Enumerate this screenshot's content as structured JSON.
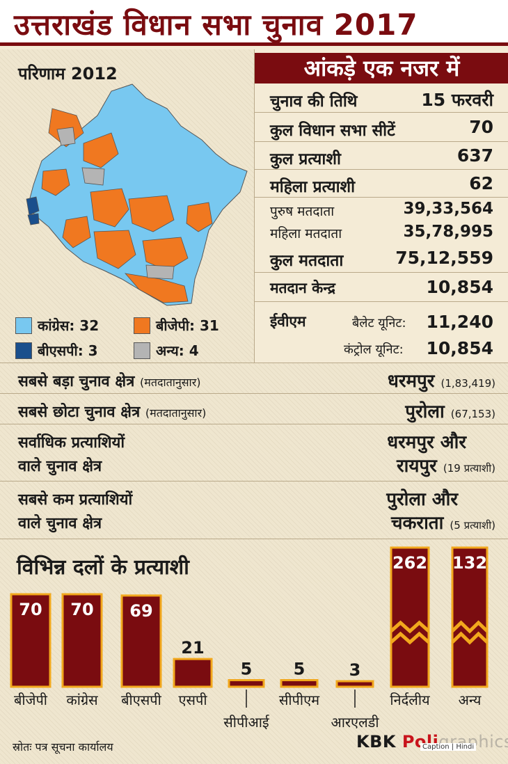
{
  "title": "उत्तराखंड विधान सभा चुनाव 2017",
  "map": {
    "label": "परिणाम 2012",
    "legend": [
      {
        "name": "कांग्रेस: 32",
        "color": "#78c8f0"
      },
      {
        "name": "बीजेपी: 31",
        "color": "#f07820"
      },
      {
        "name": "बीएसपी: 3",
        "color": "#1a4f8c"
      },
      {
        "name": "अन्य: 4",
        "color": "#b4b4b4"
      }
    ]
  },
  "stats": {
    "header": "आंकड़े एक नजर में",
    "rows": [
      {
        "label": "चुनाव की तिथि",
        "value": "15 फरवरी"
      },
      {
        "label": "कुल विधान सभा सीटें",
        "value": "70"
      },
      {
        "label": "कुल प्रत्याशी",
        "value": "637"
      },
      {
        "label": "महिला प्रत्याशी",
        "value": "62"
      },
      {
        "label": "पुरुष मतदाता",
        "value": "39,33,564"
      },
      {
        "label": "महिला मतदाता",
        "value": "35,78,995"
      },
      {
        "label": "कुल मतदाता",
        "value": "75,12,559"
      },
      {
        "label": "मतदान केन्द्र",
        "value": "10,854"
      }
    ],
    "evm": {
      "label": "ईवीएम",
      "ballot_label": "बैलेट यूनिट:",
      "ballot_value": "11,240",
      "control_label": "कंट्रोल यूनिट:",
      "control_value": "10,854"
    }
  },
  "facts": [
    {
      "label": "सबसे बड़ा चुनाव क्षेत्र",
      "note": "(मतदातानुसार)",
      "value": "धरमपुर",
      "value_note": "(1,83,419)"
    },
    {
      "label": "सबसे छोटा चुनाव क्षेत्र",
      "note": "(मतदातानुसार)",
      "value": "पुरोला",
      "value_note": "(67,153)"
    },
    {
      "label_line1": "सर्वाधिक प्रत्याशियों",
      "label_line2": "वाले चुनाव क्षेत्र",
      "value_line1": "धरमपुर और",
      "value_line2": "रायपुर",
      "value_note": "(19 प्रत्याशी)"
    },
    {
      "label_line1": "सबसे कम प्रत्याशियों",
      "label_line2": "वाले चुनाव क्षेत्र",
      "value_line1": "पुरोला और",
      "value_line2": "चकराता",
      "value_note": "(5 प्रत्याशी)"
    }
  ],
  "chart_data": {
    "type": "bar",
    "title": "विभिन्न दलों के प्रत्याशी",
    "categories": [
      "बीजेपी",
      "कांग्रेस",
      "बीएसपी",
      "एसपी",
      "सीपीआई",
      "सीपीएम",
      "आरएलडी",
      "निर्दलीय",
      "अन्य"
    ],
    "values": [
      70,
      70,
      69,
      21,
      5,
      5,
      3,
      262,
      132
    ],
    "broken_axis_categories": [
      "निर्दलीय",
      "अन्य"
    ],
    "bar_color": "#7a0c10",
    "bar_outline": "#f2a81d"
  },
  "footer": {
    "source": "स्रोतः पत्र सूचना कार्यालय",
    "brand_main": "KBK ",
    "brand_red": "Poli",
    "brand_gray": "graphics",
    "tag": "Caption | Hindi"
  }
}
